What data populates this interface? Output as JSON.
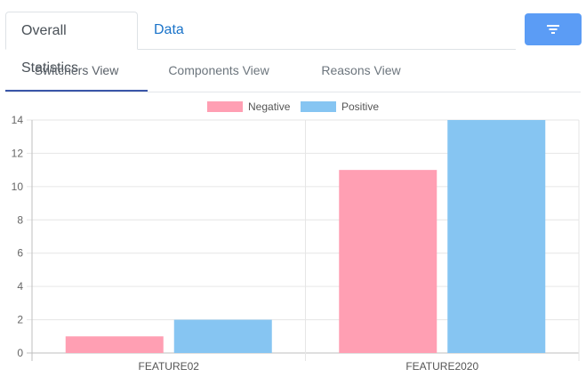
{
  "tabs": {
    "items": [
      {
        "label": "Overall Statistics",
        "active": true
      },
      {
        "label": "Data",
        "active": false
      }
    ]
  },
  "filter_button": {
    "icon": "filter-icon",
    "color": "#5b9cf5"
  },
  "sub_tabs": {
    "items": [
      {
        "label": "Switchers View",
        "active": true
      },
      {
        "label": "Components View",
        "active": false
      },
      {
        "label": "Reasons View",
        "active": false
      }
    ]
  },
  "chart_data": {
    "type": "bar",
    "categories": [
      "FEATURE02",
      "FEATURE2020"
    ],
    "series": [
      {
        "name": "Negative",
        "values": [
          1,
          11
        ],
        "color": "#ff9fb3"
      },
      {
        "name": "Positive",
        "values": [
          2,
          14
        ],
        "color": "#86c5f2"
      }
    ],
    "ylim": [
      0,
      14
    ],
    "yticks": [
      0,
      2,
      4,
      6,
      8,
      10,
      12,
      14
    ],
    "legend": "top-center",
    "grid": true,
    "title": "",
    "xlabel": "",
    "ylabel": ""
  }
}
